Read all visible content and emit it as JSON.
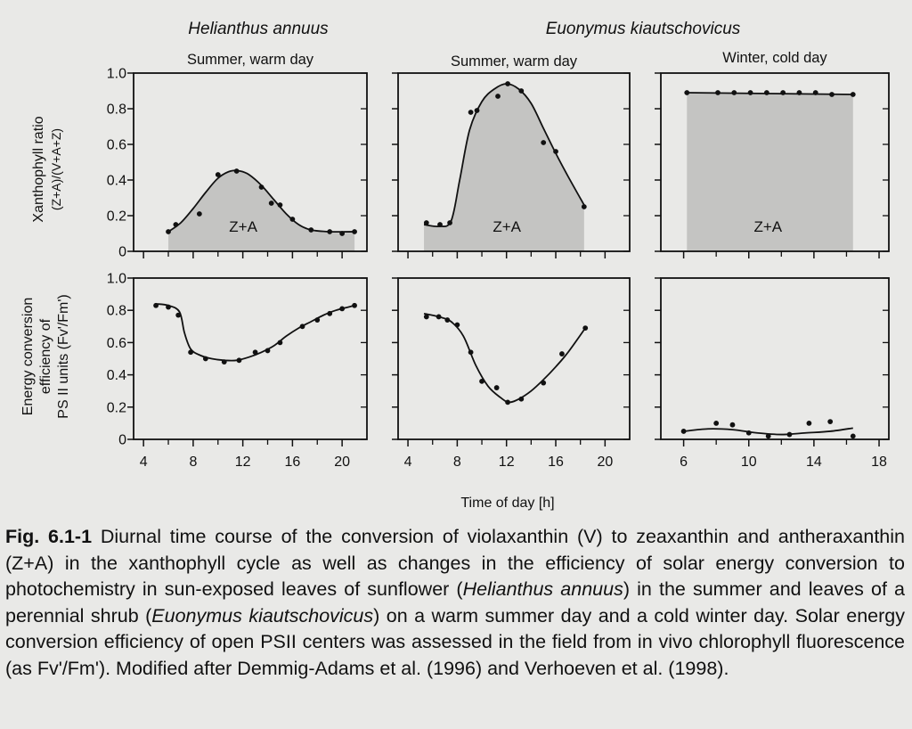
{
  "figure": {
    "species_left": "Helianthus annuus",
    "species_right": "Euonymus kiautschovicus",
    "xlabel": "Time of day [h]",
    "ylabel_top": [
      "Xanthophyll ratio",
      "(Z+A)/(V+A+Z)"
    ],
    "ylabel_bottom": [
      "Energy conversion",
      "efficiency of",
      "PS II units (Fv'/Fm')"
    ],
    "area_label": "Z+A",
    "fill_color": "#c4c4c2",
    "line_color": "#111111"
  },
  "chart_data": [
    {
      "panel": "top-left",
      "type": "area",
      "title": "Summer, warm day",
      "x_ticks": [
        4,
        8,
        12,
        16,
        20
      ],
      "xlim": [
        3.2,
        22
      ],
      "ylim": [
        0,
        1.0
      ],
      "y_ticks": [
        0,
        0.2,
        0.4,
        0.6,
        0.8,
        1.0
      ],
      "show_y_tick_labels": true,
      "area_x_range": [
        6,
        21
      ],
      "points": [
        [
          6,
          0.11
        ],
        [
          6.6,
          0.15
        ],
        [
          8.5,
          0.21
        ],
        [
          10,
          0.43
        ],
        [
          11.5,
          0.45
        ],
        [
          13.5,
          0.36
        ],
        [
          14.3,
          0.27
        ],
        [
          15,
          0.26
        ],
        [
          16,
          0.18
        ],
        [
          17.5,
          0.12
        ],
        [
          19,
          0.11
        ],
        [
          20,
          0.1
        ],
        [
          21,
          0.11
        ]
      ],
      "curve": [
        [
          6,
          0.11
        ],
        [
          7,
          0.16
        ],
        [
          8,
          0.24
        ],
        [
          9,
          0.33
        ],
        [
          10,
          0.41
        ],
        [
          11,
          0.45
        ],
        [
          11.8,
          0.45
        ],
        [
          12.5,
          0.43
        ],
        [
          13.5,
          0.37
        ],
        [
          14.5,
          0.29
        ],
        [
          15.5,
          0.21
        ],
        [
          16.5,
          0.15
        ],
        [
          17.5,
          0.12
        ],
        [
          19,
          0.11
        ],
        [
          21,
          0.11
        ]
      ]
    },
    {
      "panel": "top-middle",
      "type": "area",
      "title": "Summer, warm day",
      "x_ticks": [
        4,
        8,
        12,
        16,
        20
      ],
      "xlim": [
        3.2,
        22
      ],
      "ylim": [
        0,
        1.0
      ],
      "y_ticks": [
        0,
        0.2,
        0.4,
        0.6,
        0.8,
        1.0
      ],
      "show_y_tick_labels": false,
      "area_x_range": [
        5.3,
        18.3
      ],
      "points": [
        [
          5.5,
          0.16
        ],
        [
          6.6,
          0.15
        ],
        [
          7.4,
          0.16
        ],
        [
          9.1,
          0.78
        ],
        [
          9.6,
          0.79
        ],
        [
          11.3,
          0.87
        ],
        [
          12.1,
          0.94
        ],
        [
          13.2,
          0.9
        ],
        [
          15,
          0.61
        ],
        [
          16,
          0.56
        ],
        [
          18.3,
          0.25
        ]
      ],
      "curve": [
        [
          5.3,
          0.15
        ],
        [
          6.5,
          0.14
        ],
        [
          7.5,
          0.17
        ],
        [
          8.2,
          0.4
        ],
        [
          9,
          0.68
        ],
        [
          10,
          0.84
        ],
        [
          11,
          0.91
        ],
        [
          12,
          0.94
        ],
        [
          13,
          0.91
        ],
        [
          14,
          0.83
        ],
        [
          15,
          0.69
        ],
        [
          16,
          0.55
        ],
        [
          17,
          0.42
        ],
        [
          18.3,
          0.26
        ]
      ]
    },
    {
      "panel": "top-right",
      "type": "area",
      "title": "Winter, cold day",
      "x_ticks": [
        6,
        10,
        14,
        18
      ],
      "xlim": [
        4.6,
        18.6
      ],
      "ylim": [
        0,
        1.0
      ],
      "y_ticks": [
        0,
        0.2,
        0.4,
        0.6,
        0.8,
        1.0
      ],
      "show_y_tick_labels": false,
      "area_x_range": [
        6.2,
        16.4
      ],
      "points": [
        [
          6.2,
          0.89
        ],
        [
          8.1,
          0.89
        ],
        [
          9.1,
          0.89
        ],
        [
          10.1,
          0.89
        ],
        [
          11.1,
          0.89
        ],
        [
          12.1,
          0.89
        ],
        [
          13.1,
          0.89
        ],
        [
          14.1,
          0.89
        ],
        [
          15.1,
          0.88
        ],
        [
          16.4,
          0.88
        ]
      ],
      "curve": [
        [
          6.2,
          0.89
        ],
        [
          16.4,
          0.88
        ]
      ]
    },
    {
      "panel": "bottom-left",
      "type": "line",
      "x_ticks": [
        4,
        8,
        12,
        16,
        20
      ],
      "xlim": [
        3.2,
        22
      ],
      "ylim": [
        0,
        1.0
      ],
      "y_ticks": [
        0,
        0.2,
        0.4,
        0.6,
        0.8,
        1.0
      ],
      "show_y_tick_labels": true,
      "points": [
        [
          5,
          0.83
        ],
        [
          6,
          0.82
        ],
        [
          6.8,
          0.77
        ],
        [
          7.8,
          0.54
        ],
        [
          9,
          0.5
        ],
        [
          10.5,
          0.48
        ],
        [
          11.7,
          0.49
        ],
        [
          13,
          0.54
        ],
        [
          14,
          0.55
        ],
        [
          15,
          0.6
        ],
        [
          16.8,
          0.7
        ],
        [
          18,
          0.74
        ],
        [
          19,
          0.78
        ],
        [
          20,
          0.81
        ],
        [
          21,
          0.83
        ]
      ],
      "curve": [
        [
          5,
          0.84
        ],
        [
          6,
          0.83
        ],
        [
          6.9,
          0.79
        ],
        [
          7.3,
          0.66
        ],
        [
          7.8,
          0.56
        ],
        [
          8.6,
          0.52
        ],
        [
          9.5,
          0.5
        ],
        [
          10.5,
          0.49
        ],
        [
          11.5,
          0.49
        ],
        [
          12.5,
          0.51
        ],
        [
          13.5,
          0.54
        ],
        [
          14.5,
          0.58
        ],
        [
          15.5,
          0.64
        ],
        [
          16.5,
          0.69
        ],
        [
          17.5,
          0.73
        ],
        [
          18.5,
          0.77
        ],
        [
          19.5,
          0.8
        ],
        [
          21,
          0.83
        ]
      ]
    },
    {
      "panel": "bottom-middle",
      "type": "line",
      "x_ticks": [
        4,
        8,
        12,
        16,
        20
      ],
      "xlim": [
        3.2,
        22
      ],
      "ylim": [
        0,
        1.0
      ],
      "y_ticks": [
        0,
        0.2,
        0.4,
        0.6,
        0.8,
        1.0
      ],
      "show_y_tick_labels": false,
      "points": [
        [
          5.5,
          0.76
        ],
        [
          6.5,
          0.76
        ],
        [
          7.2,
          0.74
        ],
        [
          8,
          0.71
        ],
        [
          9.1,
          0.54
        ],
        [
          10,
          0.36
        ],
        [
          11.2,
          0.32
        ],
        [
          12.1,
          0.23
        ],
        [
          13.2,
          0.25
        ],
        [
          15,
          0.35
        ],
        [
          16.5,
          0.53
        ],
        [
          18.4,
          0.69
        ]
      ],
      "curve": [
        [
          5.3,
          0.78
        ],
        [
          6.5,
          0.76
        ],
        [
          7.5,
          0.73
        ],
        [
          8.5,
          0.64
        ],
        [
          9.5,
          0.46
        ],
        [
          10.5,
          0.33
        ],
        [
          11.5,
          0.26
        ],
        [
          12.2,
          0.23
        ],
        [
          13,
          0.25
        ],
        [
          14,
          0.3
        ],
        [
          15,
          0.37
        ],
        [
          16,
          0.45
        ],
        [
          17,
          0.54
        ],
        [
          18.4,
          0.69
        ]
      ]
    },
    {
      "panel": "bottom-right",
      "type": "line",
      "x_ticks": [
        6,
        10,
        14,
        18
      ],
      "xlim": [
        4.6,
        18.6
      ],
      "ylim": [
        0,
        1.0
      ],
      "y_ticks": [
        0,
        0.2,
        0.4,
        0.6,
        0.8,
        1.0
      ],
      "show_y_tick_labels": false,
      "points": [
        [
          6,
          0.05
        ],
        [
          8,
          0.1
        ],
        [
          9,
          0.09
        ],
        [
          10,
          0.04
        ],
        [
          11.2,
          0.02
        ],
        [
          12.5,
          0.03
        ],
        [
          13.7,
          0.1
        ],
        [
          15,
          0.11
        ],
        [
          16.4,
          0.02
        ]
      ],
      "curve": [
        [
          6,
          0.05
        ],
        [
          7.5,
          0.065
        ],
        [
          9,
          0.06
        ],
        [
          10.5,
          0.04
        ],
        [
          12,
          0.03
        ],
        [
          13.5,
          0.04
        ],
        [
          15,
          0.05
        ],
        [
          16.4,
          0.07
        ]
      ]
    }
  ],
  "caption": {
    "fig_label": "Fig. 6.1-1",
    "t1": " Diurnal time course of the conversion of violaxanthin (V) to zeaxanthin and antheraxanthin (Z+A) in the xanthophyll cycle as well as changes in the efficiency of solar energy conversion to photochemistry in sun-exposed leaves of sunflower (",
    "i1": "Helianthus annuus",
    "t2": ") in the summer and leaves of a perennial shrub (",
    "i2": "Euonymus kiautschovicus",
    "t3": ") on a warm summer day and a cold winter day. Solar energy conversion efficiency of open PSII centers was assessed in the field from in vivo chlorophyll fluorescence (as Fv'/Fm'). Modified after Demmig-Adams et al. (1996) and Verhoeven et al. (1998)."
  }
}
